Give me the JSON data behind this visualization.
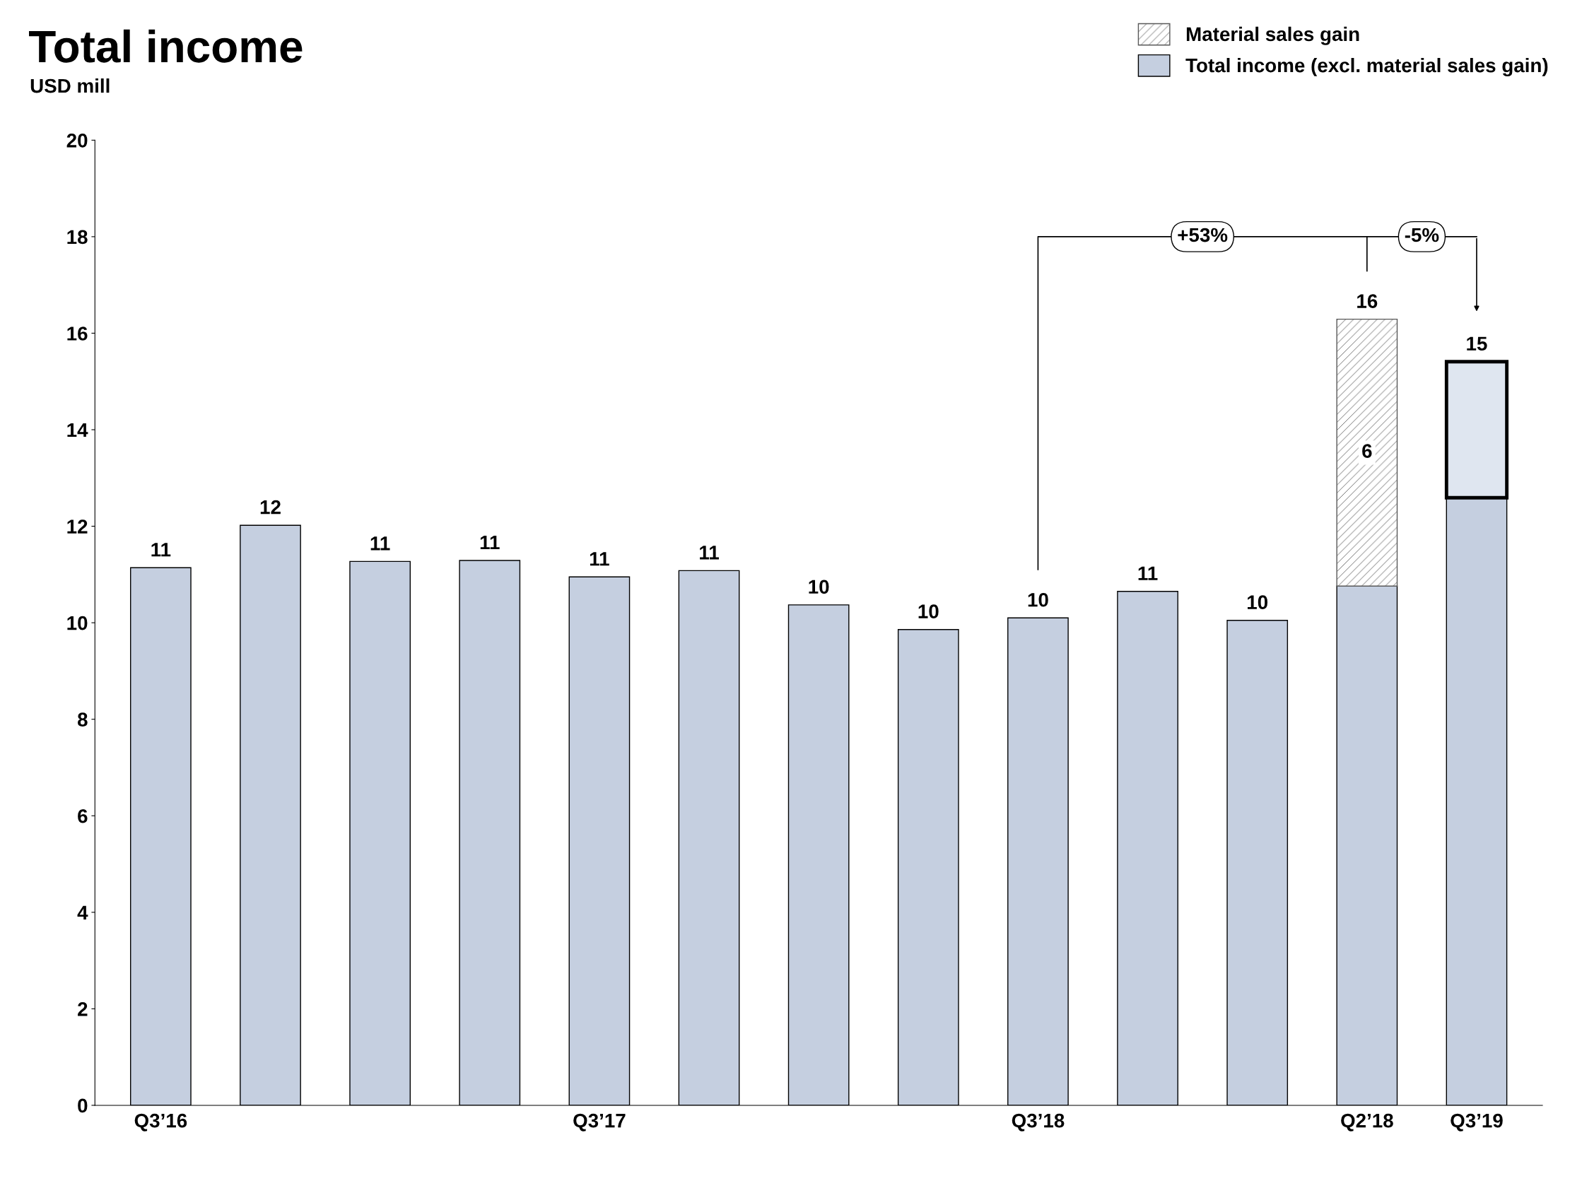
{
  "chart_data": {
    "type": "bar",
    "title": "Total income",
    "ylabel": "USD mill",
    "stacked": true,
    "categories": [
      "Q3’16",
      null,
      null,
      null,
      "Q3’17",
      null,
      null,
      null,
      "Q3’18",
      null,
      null,
      "Q2’18",
      "Q3’19"
    ],
    "series": [
      {
        "name": "Total income (excl. material sales gain)",
        "color": "#c5cfe0",
        "values": [
          11.14,
          12.02,
          11.27,
          11.29,
          10.95,
          11.08,
          10.37,
          9.86,
          10.1,
          10.65,
          10.05,
          10.76,
          12.59
        ],
        "value_labels": [
          "11",
          "12",
          "11",
          "11",
          "11",
          "11",
          "10",
          "10",
          "10",
          "11",
          "10",
          null,
          null
        ]
      },
      {
        "name": "Material sales gain",
        "color": "#595959",
        "values": [
          null,
          null,
          null,
          null,
          null,
          null,
          null,
          null,
          null,
          null,
          null,
          5.53,
          null
        ],
        "value_labels": [
          null,
          null,
          null,
          null,
          null,
          null,
          null,
          null,
          null,
          null,
          null,
          "6",
          null
        ]
      },
      {
        "color": "#dfe6f0",
        "values": [
          null,
          null,
          null,
          null,
          null,
          null,
          null,
          null,
          null,
          null,
          null,
          null,
          2.82
        ]
      }
    ],
    "totals": [
      null,
      null,
      null,
      null,
      null,
      null,
      null,
      null,
      null,
      null,
      null,
      "16",
      "15"
    ],
    "annotations": [
      "+53%",
      "-5%"
    ],
    "ylim": [
      0,
      20
    ],
    "yticks": [
      0,
      2,
      4,
      6,
      8,
      10,
      12,
      14,
      16,
      18,
      20
    ],
    "grid": false,
    "legend": "top right"
  }
}
